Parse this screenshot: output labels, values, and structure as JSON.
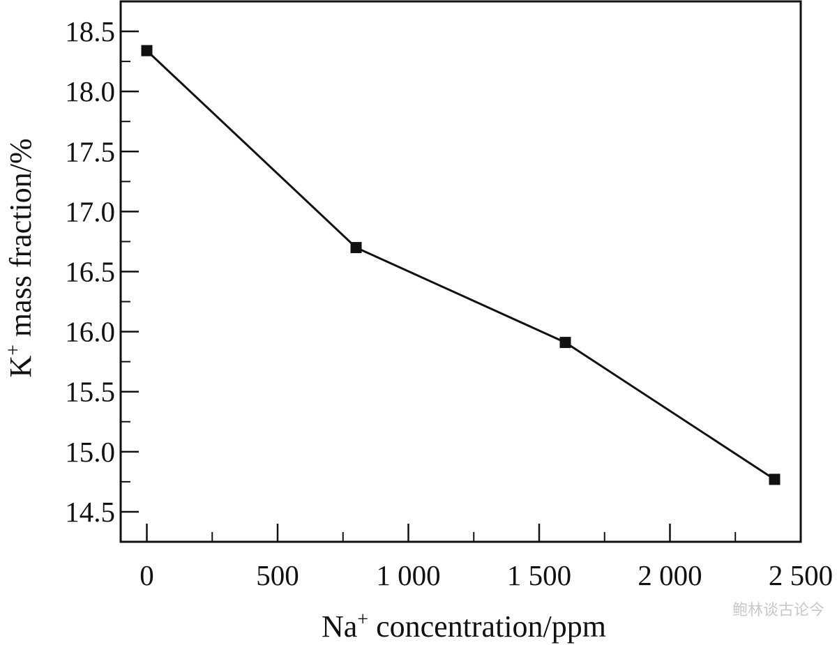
{
  "chart_data": {
    "type": "line",
    "x": [
      0,
      800,
      1600,
      2400
    ],
    "y": [
      18.34,
      16.7,
      15.91,
      14.77
    ],
    "xlabel": {
      "base": "Na",
      "sup": "+",
      "rest": " concentration/ppm"
    },
    "ylabel": {
      "base": "K",
      "sup": "+",
      "rest": " mass fraction/%"
    },
    "xlim": [
      -100,
      2500
    ],
    "ylim": [
      14.25,
      18.75
    ],
    "x_ticks": [
      0,
      500,
      1000,
      1500,
      2000,
      2500
    ],
    "x_tick_labels": [
      "0",
      "500",
      "1 000",
      "1 500",
      "2 000",
      "2 500"
    ],
    "y_ticks": [
      14.5,
      15.0,
      15.5,
      16.0,
      16.5,
      17.0,
      17.5,
      18.0,
      18.5
    ],
    "y_tick_labels": [
      "14.5",
      "15.0",
      "15.5",
      "16.0",
      "16.5",
      "17.0",
      "17.5",
      "18.0",
      "18.5"
    ],
    "marker": "square",
    "line_color": "#111111",
    "grid": false
  },
  "watermark": "鲍林谈古论今"
}
